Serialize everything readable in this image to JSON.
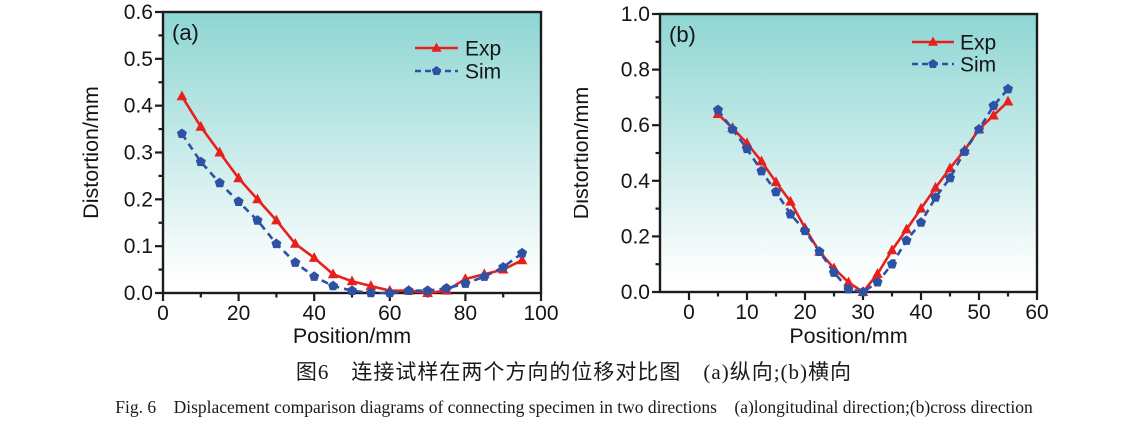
{
  "figure": {
    "caption_zh": "图6　连接试样在两个方向的位移对比图　(a)纵向;(b)横向",
    "caption_en": "Fig. 6　Displacement comparison diagrams of connecting specimen in two directions　(a)longitudinal direction;(b)cross direction"
  },
  "colors": {
    "exp": "#e8201d",
    "sim": "#2d51a3",
    "axis": "#1c1c1c",
    "text": "#151515",
    "plot_bg_top": "#8ed6d3",
    "plot_bg_bottom": "#ffffff"
  },
  "chart_data": [
    {
      "type": "line",
      "panel_label": "(a)",
      "xlabel": "Position/mm",
      "ylabel": "Distortion/mm",
      "xlim": [
        0,
        100
      ],
      "ylim": [
        0,
        0.6
      ],
      "grid": false,
      "legend_position": "top-right",
      "xticks": {
        "values": [
          0,
          20,
          40,
          60,
          80,
          100
        ],
        "labels": [
          "0",
          "20",
          "40",
          "60",
          "80",
          "100"
        ],
        "minor_step": 10
      },
      "yticks": {
        "values": [
          0,
          0.1,
          0.2,
          0.3,
          0.4,
          0.5,
          0.6
        ],
        "labels": [
          "0.0",
          "0.1",
          "0.2",
          "0.3",
          "0.4",
          "0.5",
          "0.6"
        ],
        "minor_step": 0.05
      },
      "x": [
        5,
        10,
        15,
        20,
        25,
        30,
        35,
        40,
        45,
        50,
        55,
        60,
        65,
        70,
        75,
        80,
        85,
        90,
        95
      ],
      "series": [
        {
          "name": "Exp",
          "marker": "triangle",
          "line": "solid",
          "values": [
            0.42,
            0.355,
            0.3,
            0.245,
            0.2,
            0.155,
            0.105,
            0.075,
            0.04,
            0.025,
            0.015,
            0.005,
            0.005,
            0.0,
            0.005,
            0.03,
            0.04,
            0.05,
            0.07
          ]
        },
        {
          "name": "Sim",
          "marker": "pentagon",
          "line": "dashed",
          "values": [
            0.34,
            0.28,
            0.235,
            0.195,
            0.155,
            0.105,
            0.065,
            0.035,
            0.015,
            0.005,
            0.0,
            0.0,
            0.005,
            0.005,
            0.01,
            0.02,
            0.035,
            0.055,
            0.085
          ]
        }
      ]
    },
    {
      "type": "line",
      "panel_label": "(b)",
      "xlabel": "Position/mm",
      "ylabel": "Distortion/mm",
      "xlim": [
        -5,
        60
      ],
      "ylim": [
        0,
        1.0
      ],
      "grid": false,
      "legend_position": "top-right",
      "xticks": {
        "values": [
          0,
          10,
          20,
          30,
          40,
          50,
          60
        ],
        "labels": [
          "0",
          "10",
          "20",
          "30",
          "40",
          "50",
          "60"
        ],
        "minor_step": 5
      },
      "yticks": {
        "values": [
          0,
          0.2,
          0.4,
          0.6,
          0.8,
          1.0
        ],
        "labels": [
          "0.0",
          "0.2",
          "0.4",
          "0.6",
          "0.8",
          "1.0"
        ],
        "minor_step": 0.1
      },
      "x": [
        5,
        7.5,
        10,
        12.5,
        15,
        17.5,
        20,
        22.5,
        25,
        27.5,
        30,
        32.5,
        35,
        37.5,
        40,
        42.5,
        45,
        47.5,
        50,
        52.5,
        55
      ],
      "series": [
        {
          "name": "Exp",
          "marker": "triangle",
          "line": "solid",
          "values": [
            0.64,
            0.59,
            0.535,
            0.47,
            0.395,
            0.325,
            0.23,
            0.145,
            0.085,
            0.035,
            0.0,
            0.065,
            0.15,
            0.225,
            0.3,
            0.375,
            0.445,
            0.51,
            0.585,
            0.635,
            0.685
          ]
        },
        {
          "name": "Sim",
          "marker": "pentagon",
          "line": "dashed",
          "values": [
            0.655,
            0.585,
            0.515,
            0.435,
            0.36,
            0.28,
            0.22,
            0.145,
            0.07,
            0.01,
            0.0,
            0.035,
            0.1,
            0.185,
            0.25,
            0.34,
            0.41,
            0.505,
            0.585,
            0.67,
            0.73
          ]
        }
      ]
    }
  ]
}
